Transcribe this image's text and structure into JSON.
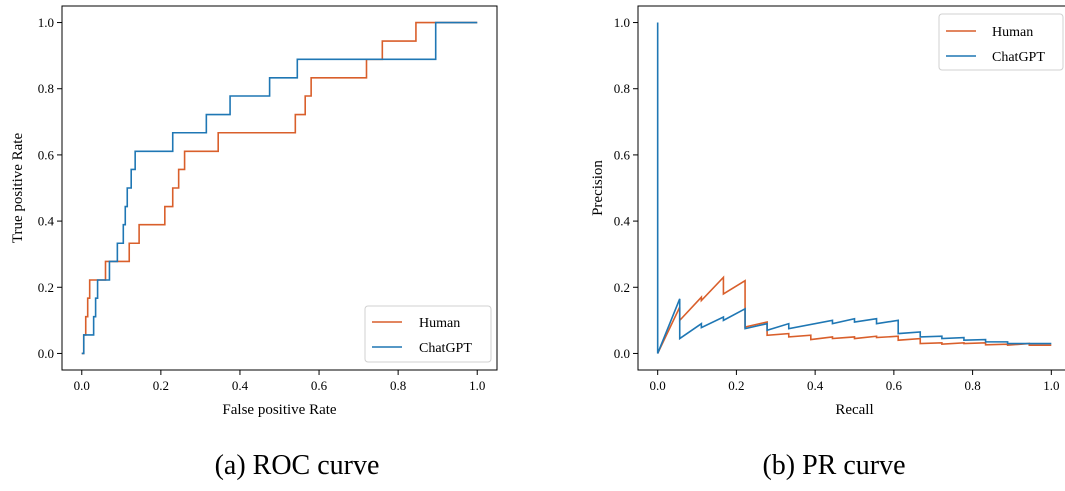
{
  "colors": {
    "human": "#d95f2b",
    "chatgpt": "#1f77b4"
  },
  "chart_data": [
    {
      "type": "line",
      "caption": "(a) ROC curve",
      "xlabel": "False positive Rate",
      "ylabel": "True positive Rate",
      "xlim": [
        -0.05,
        1.05
      ],
      "ylim": [
        -0.05,
        1.05
      ],
      "xticks": [
        "0.0",
        "0.2",
        "0.4",
        "0.6",
        "0.8",
        "1.0"
      ],
      "yticks": [
        "0.0",
        "0.2",
        "0.4",
        "0.6",
        "0.8",
        "1.0"
      ],
      "legend": {
        "placement": "lower-right",
        "entries": [
          "Human",
          "ChatGPT"
        ]
      },
      "series": [
        {
          "name": "Human",
          "points": [
            [
              0,
              0
            ],
            [
              0.005,
              0
            ],
            [
              0.005,
              0.056
            ],
            [
              0.01,
              0.056
            ],
            [
              0.01,
              0.111
            ],
            [
              0.015,
              0.111
            ],
            [
              0.015,
              0.167
            ],
            [
              0.02,
              0.167
            ],
            [
              0.02,
              0.222
            ],
            [
              0.06,
              0.222
            ],
            [
              0.06,
              0.278
            ],
            [
              0.1,
              0.278
            ],
            [
              0.1,
              0.278
            ],
            [
              0.12,
              0.278
            ],
            [
              0.12,
              0.333
            ],
            [
              0.145,
              0.333
            ],
            [
              0.145,
              0.389
            ],
            [
              0.21,
              0.389
            ],
            [
              0.21,
              0.444
            ],
            [
              0.23,
              0.444
            ],
            [
              0.23,
              0.5
            ],
            [
              0.245,
              0.5
            ],
            [
              0.245,
              0.556
            ],
            [
              0.26,
              0.556
            ],
            [
              0.26,
              0.611
            ],
            [
              0.345,
              0.611
            ],
            [
              0.345,
              0.667
            ],
            [
              0.54,
              0.667
            ],
            [
              0.54,
              0.722
            ],
            [
              0.565,
              0.722
            ],
            [
              0.565,
              0.778
            ],
            [
              0.58,
              0.778
            ],
            [
              0.58,
              0.833
            ],
            [
              0.72,
              0.833
            ],
            [
              0.72,
              0.889
            ],
            [
              0.76,
              0.889
            ],
            [
              0.76,
              0.944
            ],
            [
              0.845,
              0.944
            ],
            [
              0.845,
              1.0
            ],
            [
              1.0,
              1.0
            ]
          ]
        },
        {
          "name": "ChatGPT",
          "points": [
            [
              0,
              0
            ],
            [
              0.005,
              0
            ],
            [
              0.005,
              0.056
            ],
            [
              0.03,
              0.056
            ],
            [
              0.03,
              0.111
            ],
            [
              0.035,
              0.111
            ],
            [
              0.035,
              0.167
            ],
            [
              0.04,
              0.167
            ],
            [
              0.04,
              0.222
            ],
            [
              0.07,
              0.222
            ],
            [
              0.07,
              0.278
            ],
            [
              0.09,
              0.278
            ],
            [
              0.09,
              0.333
            ],
            [
              0.105,
              0.333
            ],
            [
              0.105,
              0.389
            ],
            [
              0.11,
              0.389
            ],
            [
              0.11,
              0.444
            ],
            [
              0.115,
              0.444
            ],
            [
              0.115,
              0.5
            ],
            [
              0.125,
              0.5
            ],
            [
              0.125,
              0.556
            ],
            [
              0.135,
              0.556
            ],
            [
              0.135,
              0.611
            ],
            [
              0.23,
              0.611
            ],
            [
              0.23,
              0.667
            ],
            [
              0.315,
              0.667
            ],
            [
              0.315,
              0.722
            ],
            [
              0.375,
              0.722
            ],
            [
              0.375,
              0.778
            ],
            [
              0.475,
              0.778
            ],
            [
              0.475,
              0.833
            ],
            [
              0.545,
              0.833
            ],
            [
              0.545,
              0.889
            ],
            [
              0.895,
              0.889
            ],
            [
              0.895,
              1.0
            ],
            [
              1.0,
              1.0
            ]
          ]
        }
      ]
    },
    {
      "type": "line",
      "caption": "(b) PR curve",
      "xlabel": "Recall",
      "ylabel": "Precision",
      "xlim": [
        -0.05,
        1.05
      ],
      "ylim": [
        -0.05,
        1.05
      ],
      "xticks": [
        "0.0",
        "0.2",
        "0.4",
        "0.6",
        "0.8",
        "1.0"
      ],
      "yticks": [
        "0.0",
        "0.2",
        "0.4",
        "0.6",
        "0.8",
        "1.0"
      ],
      "legend": {
        "placement": "top-right",
        "entries": [
          "Human",
          "ChatGPT"
        ]
      },
      "series": [
        {
          "name": "Human",
          "points": [
            [
              0,
              0.0
            ],
            [
              0.056,
              0.14
            ],
            [
              0.056,
              0.1
            ],
            [
              0.111,
              0.17
            ],
            [
              0.111,
              0.16
            ],
            [
              0.167,
              0.23
            ],
            [
              0.167,
              0.18
            ],
            [
              0.222,
              0.22
            ],
            [
              0.222,
              0.08
            ],
            [
              0.278,
              0.095
            ],
            [
              0.278,
              0.055
            ],
            [
              0.333,
              0.06
            ],
            [
              0.333,
              0.05
            ],
            [
              0.389,
              0.055
            ],
            [
              0.389,
              0.042
            ],
            [
              0.444,
              0.05
            ],
            [
              0.444,
              0.045
            ],
            [
              0.5,
              0.05
            ],
            [
              0.5,
              0.045
            ],
            [
              0.556,
              0.052
            ],
            [
              0.556,
              0.048
            ],
            [
              0.611,
              0.052
            ],
            [
              0.611,
              0.04
            ],
            [
              0.667,
              0.045
            ],
            [
              0.667,
              0.03
            ],
            [
              0.722,
              0.032
            ],
            [
              0.722,
              0.028
            ],
            [
              0.778,
              0.032
            ],
            [
              0.778,
              0.03
            ],
            [
              0.833,
              0.032
            ],
            [
              0.833,
              0.026
            ],
            [
              0.889,
              0.028
            ],
            [
              0.889,
              0.025
            ],
            [
              0.944,
              0.03
            ],
            [
              0.944,
              0.025
            ],
            [
              1.0,
              0.025
            ]
          ]
        },
        {
          "name": "ChatGPT",
          "points": [
            [
              0,
              1.0
            ],
            [
              0,
              0.0
            ],
            [
              0.056,
              0.165
            ],
            [
              0.056,
              0.045
            ],
            [
              0.111,
              0.09
            ],
            [
              0.111,
              0.078
            ],
            [
              0.167,
              0.11
            ],
            [
              0.167,
              0.1
            ],
            [
              0.222,
              0.135
            ],
            [
              0.222,
              0.075
            ],
            [
              0.278,
              0.09
            ],
            [
              0.278,
              0.07
            ],
            [
              0.333,
              0.09
            ],
            [
              0.333,
              0.075
            ],
            [
              0.444,
              0.1
            ],
            [
              0.444,
              0.09
            ],
            [
              0.5,
              0.105
            ],
            [
              0.5,
              0.095
            ],
            [
              0.556,
              0.105
            ],
            [
              0.556,
              0.09
            ],
            [
              0.611,
              0.1
            ],
            [
              0.611,
              0.06
            ],
            [
              0.667,
              0.065
            ],
            [
              0.667,
              0.05
            ],
            [
              0.722,
              0.052
            ],
            [
              0.722,
              0.045
            ],
            [
              0.778,
              0.048
            ],
            [
              0.778,
              0.04
            ],
            [
              0.833,
              0.042
            ],
            [
              0.833,
              0.035
            ],
            [
              0.889,
              0.035
            ],
            [
              0.889,
              0.03
            ],
            [
              1.0,
              0.03
            ]
          ]
        }
      ]
    }
  ]
}
